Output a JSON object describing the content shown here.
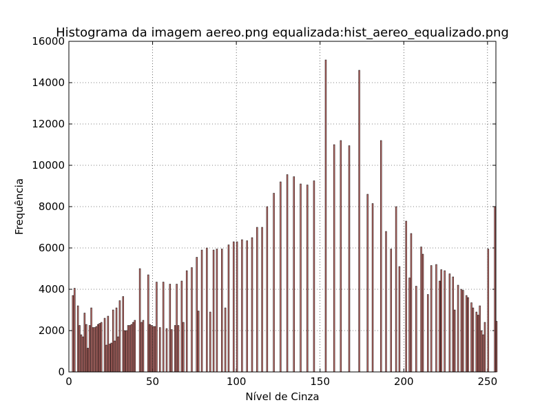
{
  "chart_data": {
    "type": "bar",
    "title": "Histograma da imagem aereo.png equalizada:hist_aereo_equalizado.png",
    "x_label": "Nível de Cinza",
    "y_label": "Frequência",
    "x": [
      2,
      3,
      5,
      6,
      7,
      8,
      9,
      10,
      11,
      12,
      13,
      14,
      15,
      16,
      17,
      18,
      19,
      21,
      22,
      23,
      24,
      25,
      26,
      27,
      28,
      29,
      30,
      32,
      33,
      34,
      35,
      36,
      37,
      38,
      39,
      42,
      43,
      44,
      47,
      48,
      49,
      50,
      51,
      52,
      54,
      56,
      58,
      60,
      61,
      63,
      64,
      65,
      67,
      68,
      70,
      73,
      76,
      77,
      79,
      82,
      84,
      86,
      88,
      91,
      93,
      95,
      98,
      100,
      103,
      106,
      109,
      112,
      115,
      118,
      122,
      126,
      130,
      134,
      138,
      142,
      146,
      153,
      158,
      162,
      167,
      173,
      178,
      181,
      186,
      189,
      192,
      195,
      197,
      201,
      203,
      204,
      207,
      210,
      211,
      214,
      216,
      219,
      221,
      222,
      224,
      227,
      229,
      230,
      232,
      234,
      235,
      237,
      238,
      240,
      241,
      243,
      244,
      245,
      246,
      247,
      248,
      250,
      254,
      255
    ],
    "values": [
      3700,
      4050,
      3200,
      2250,
      1800,
      1700,
      2850,
      2300,
      1150,
      2250,
      3100,
      2150,
      2150,
      2200,
      2300,
      2350,
      2400,
      2600,
      1300,
      2700,
      1350,
      1400,
      3000,
      1500,
      3100,
      1700,
      3450,
      3650,
      2000,
      2000,
      2250,
      2250,
      2300,
      2400,
      2500,
      5000,
      2400,
      2500,
      4700,
      2300,
      2250,
      2200,
      2200,
      4350,
      2150,
      4350,
      2100,
      4250,
      2050,
      2250,
      4250,
      2250,
      4400,
      2400,
      4900,
      5050,
      5550,
      2950,
      5900,
      6000,
      2900,
      5900,
      5950,
      5950,
      3100,
      6150,
      6300,
      6300,
      6400,
      6350,
      6500,
      7000,
      7000,
      8000,
      8650,
      9200,
      9550,
      9450,
      9100,
      9050,
      9250,
      15100,
      11000,
      11200,
      10950,
      14600,
      8600,
      8150,
      11200,
      6800,
      5950,
      8000,
      5100,
      7300,
      4550,
      6700,
      4150,
      6050,
      5700,
      3750,
      5150,
      5200,
      4400,
      4950,
      4900,
      4750,
      4600,
      3000,
      4200,
      4000,
      3950,
      3700,
      3600,
      3350,
      3100,
      2900,
      2750,
      3200,
      2000,
      1800,
      2400,
      5950,
      8000,
      2450
    ],
    "bar_width": 0.8,
    "color": "#c06e6a",
    "xlim": [
      0,
      255
    ],
    "ylim": [
      0,
      16000
    ],
    "xticks": [
      0,
      50,
      100,
      150,
      200,
      250
    ],
    "yticks": [
      0,
      2000,
      4000,
      6000,
      8000,
      10000,
      12000,
      14000,
      16000
    ],
    "grid": true
  }
}
